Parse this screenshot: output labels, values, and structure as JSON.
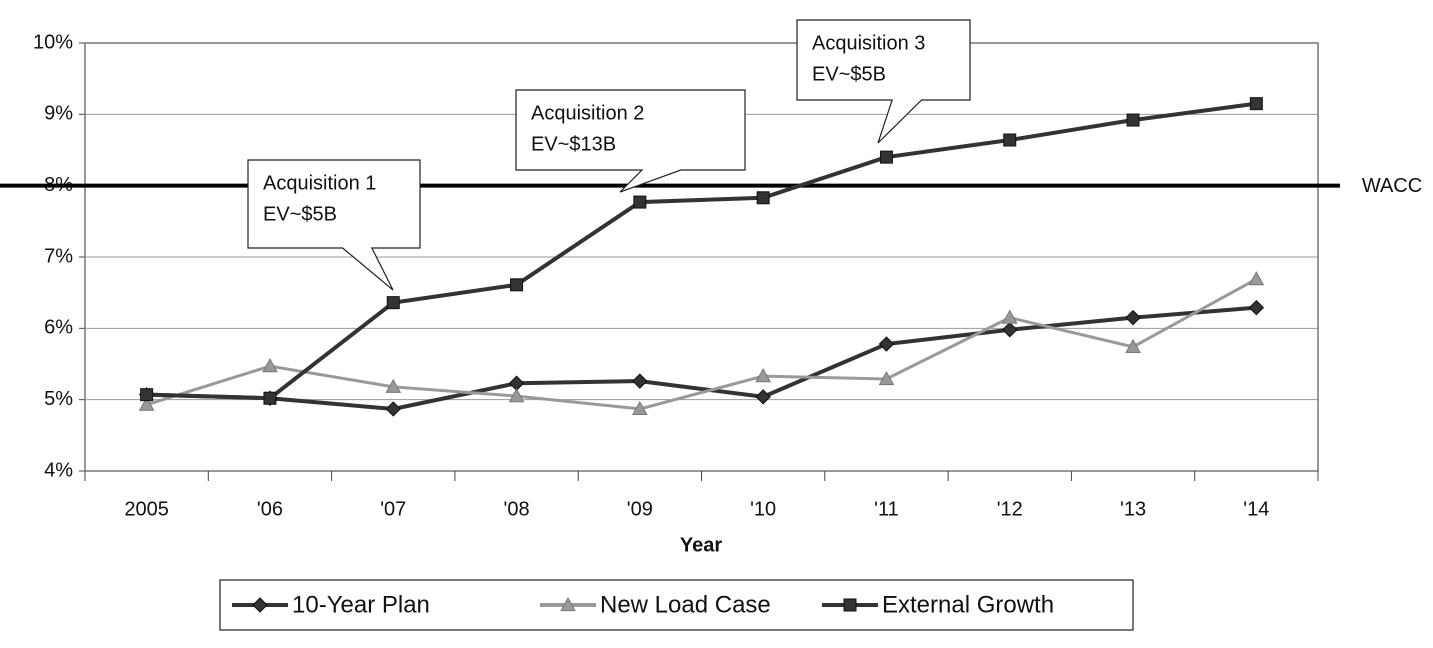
{
  "chart_data": {
    "type": "line",
    "xlabel": "Year",
    "categories": [
      "2005",
      "'06",
      "'07",
      "'08",
      "'09",
      "'10",
      "'11",
      "'12",
      "'13",
      "'14"
    ],
    "series": [
      {
        "name": "10-Year Plan",
        "color": "#333333",
        "marker": "diamond",
        "values": [
          5.07,
          5.02,
          4.87,
          5.23,
          5.26,
          5.04,
          5.78,
          5.98,
          6.15,
          6.29
        ]
      },
      {
        "name": "New Load Case",
        "color": "#999999",
        "marker": "triangle",
        "values": [
          4.93,
          5.47,
          5.18,
          5.05,
          4.87,
          5.33,
          5.29,
          6.15,
          5.74,
          6.69
        ]
      },
      {
        "name": "External Growth",
        "color": "#333333",
        "marker": "square",
        "values": [
          5.07,
          5.02,
          6.36,
          6.61,
          7.77,
          7.83,
          8.4,
          8.64,
          8.92,
          9.15
        ]
      }
    ],
    "ylim": [
      4,
      10
    ],
    "yticks": [
      {
        "value": 4,
        "label": "4%"
      },
      {
        "value": 5,
        "label": "5%"
      },
      {
        "value": 6,
        "label": "6%"
      },
      {
        "value": 7,
        "label": "7%"
      },
      {
        "value": 8,
        "label": "8%"
      },
      {
        "value": 9,
        "label": "9%"
      },
      {
        "value": 10,
        "label": "10%"
      }
    ],
    "grid": true,
    "reference_line": {
      "value": 8,
      "label": "WACC"
    },
    "annotations": [
      {
        "lines": [
          "Acquisition 1",
          "EV~$5B"
        ]
      },
      {
        "lines": [
          "Acquisition 2",
          "EV~$13B"
        ]
      },
      {
        "lines": [
          "Acquisition 3",
          "EV~$5B"
        ]
      }
    ],
    "legend": "bottom"
  }
}
